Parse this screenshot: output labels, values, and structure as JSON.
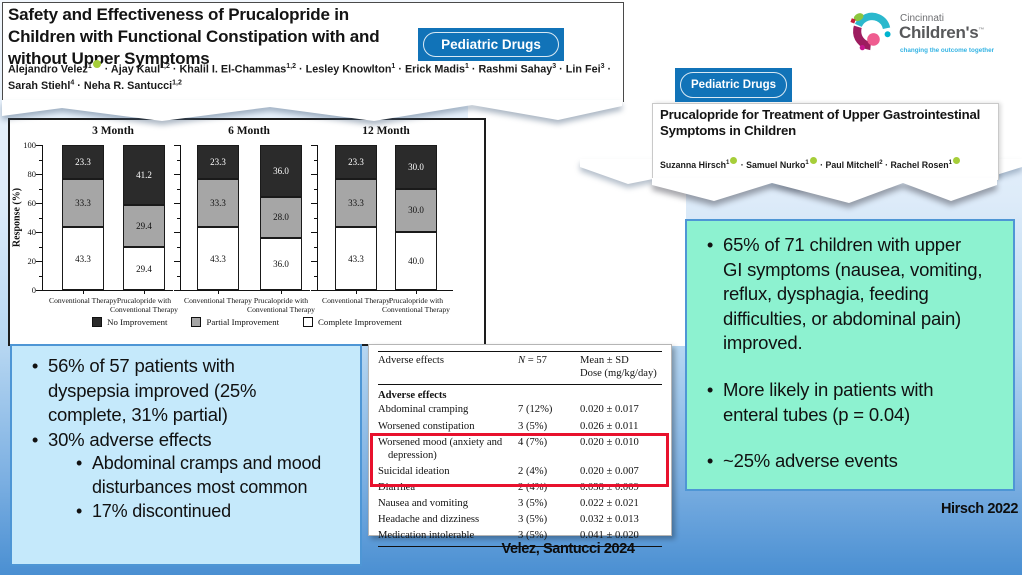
{
  "logo": {
    "line1": "Cincinnati",
    "line2": "Children's",
    "trademark": "™",
    "tagline": "changing the outcome together"
  },
  "paper_left": {
    "badge": "Pediatric Drugs",
    "title": "Safety and Effectiveness of Prucalopride in Children with Functional Constipation with and without Upper Symptoms",
    "authors": [
      {
        "name": "Alejandro Velez",
        "sup": "1",
        "orcid": true
      },
      {
        "name": "Ajay Kaul",
        "sup": "1,2",
        "orcid": false
      },
      {
        "name": "Khalil I. El-Chammas",
        "sup": "1,2",
        "orcid": false
      },
      {
        "name": "Lesley Knowlton",
        "sup": "1",
        "orcid": false
      },
      {
        "name": "Erick Madis",
        "sup": "1",
        "orcid": false
      },
      {
        "name": "Rashmi Sahay",
        "sup": "3",
        "orcid": false
      },
      {
        "name": "Lin Fei",
        "sup": "3",
        "orcid": false
      },
      {
        "name": "Sarah Stiehl",
        "sup": "4",
        "orcid": false
      },
      {
        "name": "Neha R. Santucci",
        "sup": "1,2",
        "orcid": false
      }
    ]
  },
  "paper_right": {
    "badge": "Pediatric Drugs",
    "title": "Prucalopride for Treatment of Upper Gastrointestinal Symptoms in Children",
    "authors": [
      {
        "name": "Suzanna Hirsch",
        "sup": "1",
        "orcid": true
      },
      {
        "name": "Samuel Nurko",
        "sup": "1",
        "orcid": true
      },
      {
        "name": "Paul Mitchell",
        "sup": "2",
        "orcid": false
      },
      {
        "name": "Rachel Rosen",
        "sup": "1",
        "orcid": true
      }
    ]
  },
  "blue_box": {
    "bullets": [
      {
        "level": 1,
        "text": "56% of 57 patients with dyspepsia improved (25% complete, 31% partial)"
      },
      {
        "level": 1,
        "text": "30% adverse effects"
      },
      {
        "level": 2,
        "text": "Abdominal cramps and mood disturbances most common"
      },
      {
        "level": 2,
        "text": "17% discontinued"
      }
    ]
  },
  "teal_box": {
    "bullets": [
      {
        "level": 1,
        "text": "65% of 71 children with upper GI symptoms (nausea, vomiting, reflux, dysphagia, feeding difficulties, or abdominal pain) improved."
      },
      {
        "level": 1,
        "text": "More likely in patients with enteral tubes (p = 0.04)"
      },
      {
        "level": 1,
        "text": "~25% adverse events"
      }
    ]
  },
  "adverse_table": {
    "col1": "Adverse effects",
    "col2": "N = 57",
    "col3_line1": "Mean ± SD",
    "col3_line2": "Dose (mg/kg/day)",
    "section": "Adverse effects",
    "highlight_color": "#e8112d",
    "rows": [
      {
        "label": "Abdominal cramping",
        "n": "7 (12%)",
        "dose": "0.020 ± 0.017",
        "highlight": false
      },
      {
        "label": "Worsened constipation",
        "n": "3 (5%)",
        "dose": "0.026 ± 0.011",
        "highlight": false
      },
      {
        "label": "Worsened mood (anxiety and depression)",
        "n": "4 (7%)",
        "dose": "0.020 ± 0.010",
        "highlight": true
      },
      {
        "label": "Suicidal ideation",
        "n": "2 (4%)",
        "dose": "0.020 ± 0.007",
        "highlight": true
      },
      {
        "label": "Diarrhea",
        "n": "2 (4%)",
        "dose": "0.038 ± 0.009",
        "highlight": false
      },
      {
        "label": "Nausea and vomiting",
        "n": "3 (5%)",
        "dose": "0.022 ± 0.021",
        "highlight": false
      },
      {
        "label": "Headache and dizziness",
        "n": "3 (5%)",
        "dose": "0.032 ± 0.013",
        "highlight": false
      },
      {
        "label": "Medication intolerable",
        "n": "3 (5%)",
        "dose": "0.041 ± 0.020",
        "highlight": false
      }
    ]
  },
  "chart_data": {
    "type": "bar",
    "stacked": true,
    "title": "",
    "ylabel": "Response (%)",
    "xlabel": "",
    "ylim": [
      0,
      100
    ],
    "yticks": [
      0,
      20,
      40,
      60,
      80,
      100
    ],
    "groups": [
      "3 Month",
      "6 Month",
      "12 Month"
    ],
    "categories": [
      "Conventional Therapy",
      "Prucalopride with Conventional Therapy"
    ],
    "series": [
      {
        "name": "Complete Improvement",
        "color": "#ffffff",
        "values": [
          [
            43.3,
            29.4
          ],
          [
            43.3,
            36.0
          ],
          [
            43.3,
            40.0
          ]
        ]
      },
      {
        "name": "Partial Improvement",
        "color": "#a6a6a6",
        "values": [
          [
            33.3,
            29.4
          ],
          [
            33.3,
            28.0
          ],
          [
            33.3,
            30.0
          ]
        ]
      },
      {
        "name": "No Improvement",
        "color": "#2b2b2b",
        "values": [
          [
            23.3,
            41.2
          ],
          [
            23.3,
            36.0
          ],
          [
            23.3,
            30.0
          ]
        ]
      }
    ],
    "legend": [
      "No Improvement",
      "Partial Improvement",
      "Complete Improvement"
    ],
    "legend_position": "bottom"
  },
  "citations": {
    "velez": "Velez, Santucci 2024",
    "hirsch": "Hirsch 2022"
  }
}
